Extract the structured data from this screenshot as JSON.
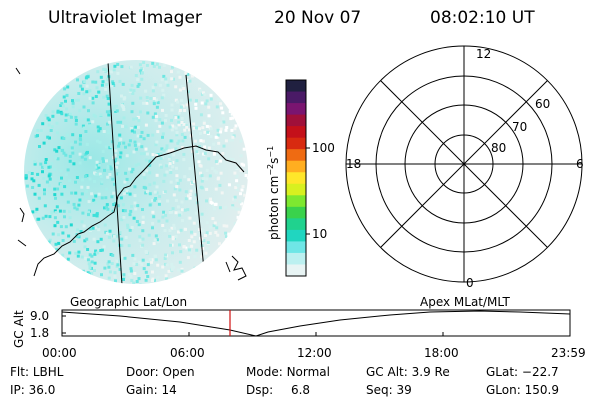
{
  "header": {
    "instrument": "Ultraviolet Imager",
    "date": "20 Nov 07",
    "time": "08:02:10 UT"
  },
  "colorbar": {
    "label_main": "photon cm",
    "sup1": "−2",
    "mid": "s",
    "sup2": "−1",
    "ticks": [
      "100",
      "10"
    ],
    "colors": [
      "#202040",
      "#4a1a66",
      "#7a1570",
      "#a0103a",
      "#c4101a",
      "#d82a10",
      "#ef6b12",
      "#ffae20",
      "#ffe62a",
      "#d8f020",
      "#7ee830",
      "#3ad24c",
      "#20d28e",
      "#20d6c0",
      "#6fe6e6",
      "#bcf0f0",
      "#e8f4f4"
    ]
  },
  "polar": {
    "mlt_labels": [
      "12",
      "18",
      "6",
      "0"
    ],
    "lat_labels": [
      "60",
      "70",
      "80"
    ]
  },
  "timeline": {
    "left_title": "Geographic Lat/Lon",
    "right_title": "Apex MLat/MLT",
    "y_axis_label": "GC Alt",
    "y_ticks": [
      "9.0",
      "1.8"
    ],
    "x_ticks": [
      "00:00",
      "06:00",
      "12:00",
      "18:00",
      "23:59"
    ],
    "marker_time": "08:02:10"
  },
  "status": {
    "filter_label": "Flt:",
    "filter": "LBHL",
    "door_label": "Door:",
    "door": "Open",
    "mode_label": "Mode:",
    "mode": "Normal",
    "gcalt_label": "GC Alt:",
    "gcalt": "3.9 Re",
    "glat_label": "GLat:",
    "glat": "−22.7",
    "ip_label": "IP:",
    "ip": "36.0",
    "gain_label": "Gain:",
    "gain": "14",
    "dsp_label": "Dsp:",
    "dsp": "6.8",
    "seq_label": "Seq:",
    "seq": "39",
    "glon_label": "GLon:",
    "glon": "150.9"
  },
  "accent_colors": {
    "marker": "#d01010",
    "aurora": "#28e0d6"
  }
}
